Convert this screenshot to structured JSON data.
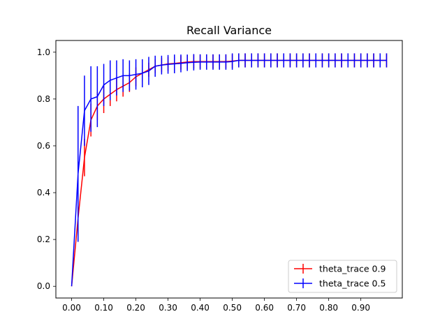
{
  "chart_data": {
    "type": "line",
    "title": "Recall Variance",
    "xlabel": "",
    "ylabel": "",
    "xlim": [
      -0.049,
      1.029
    ],
    "ylim": [
      -0.05,
      1.05
    ],
    "xticks": [
      0.0,
      0.1,
      0.2,
      0.3,
      0.4,
      0.5,
      0.6,
      0.7,
      0.8,
      0.9
    ],
    "xtick_labels": [
      "0.00",
      "0.10",
      "0.20",
      "0.30",
      "0.40",
      "0.50",
      "0.60",
      "0.70",
      "0.80",
      "0.90"
    ],
    "yticks": [
      0.0,
      0.2,
      0.4,
      0.6,
      0.8,
      1.0
    ],
    "ytick_labels": [
      "0.0",
      "0.2",
      "0.4",
      "0.6",
      "0.8",
      "1.0"
    ],
    "grid": false,
    "legend_position": "bottom-right",
    "x": [
      0.0,
      0.02,
      0.04,
      0.06,
      0.08,
      0.1,
      0.12,
      0.14,
      0.16,
      0.18,
      0.2,
      0.22,
      0.24,
      0.26,
      0.28,
      0.3,
      0.32,
      0.34,
      0.36,
      0.38,
      0.4,
      0.42,
      0.44,
      0.46,
      0.48,
      0.5,
      0.52,
      0.54,
      0.56,
      0.58,
      0.6,
      0.62,
      0.64,
      0.66,
      0.68,
      0.7,
      0.72,
      0.74,
      0.76,
      0.78,
      0.8,
      0.82,
      0.84,
      0.86,
      0.88,
      0.9,
      0.92,
      0.94,
      0.96,
      0.98
    ],
    "series": [
      {
        "name": "theta_trace 0.9",
        "color": "#ff0000",
        "values": [
          0.0,
          0.29,
          0.55,
          0.71,
          0.77,
          0.8,
          0.82,
          0.84,
          0.855,
          0.87,
          0.895,
          0.91,
          0.925,
          0.94,
          0.945,
          0.95,
          0.952,
          0.955,
          0.958,
          0.96,
          0.96,
          0.96,
          0.96,
          0.96,
          0.96,
          0.962,
          0.965,
          0.965,
          0.965,
          0.965,
          0.965,
          0.965,
          0.965,
          0.965,
          0.965,
          0.965,
          0.965,
          0.965,
          0.965,
          0.965,
          0.965,
          0.965,
          0.965,
          0.965,
          0.965,
          0.965,
          0.965,
          0.965,
          0.965,
          0.965
        ],
        "errors": [
          0.0,
          0.05,
          0.08,
          0.07,
          0.06,
          0.06,
          0.05,
          0.05,
          0.045,
          0.04,
          0.04,
          0.035,
          0.03,
          0.03,
          0.03,
          0.03,
          0.03,
          0.03,
          0.03,
          0.03,
          0.03,
          0.03,
          0.03,
          0.03,
          0.03,
          0.03,
          0.03,
          0.03,
          0.03,
          0.03,
          0.03,
          0.03,
          0.03,
          0.03,
          0.03,
          0.03,
          0.03,
          0.03,
          0.03,
          0.03,
          0.03,
          0.03,
          0.03,
          0.03,
          0.03,
          0.03,
          0.03,
          0.03,
          0.03,
          0.03
        ]
      },
      {
        "name": "theta_trace 0.5",
        "color": "#0000ff",
        "values": [
          0.0,
          0.48,
          0.75,
          0.8,
          0.81,
          0.86,
          0.88,
          0.89,
          0.9,
          0.9,
          0.905,
          0.91,
          0.92,
          0.94,
          0.945,
          0.948,
          0.95,
          0.952,
          0.955,
          0.957,
          0.958,
          0.958,
          0.958,
          0.958,
          0.958,
          0.96,
          0.965,
          0.965,
          0.965,
          0.965,
          0.965,
          0.965,
          0.965,
          0.965,
          0.965,
          0.965,
          0.965,
          0.965,
          0.965,
          0.965,
          0.965,
          0.965,
          0.965,
          0.965,
          0.965,
          0.965,
          0.965,
          0.965,
          0.965,
          0.965
        ],
        "errors": [
          0.0,
          0.29,
          0.15,
          0.14,
          0.13,
          0.09,
          0.085,
          0.075,
          0.07,
          0.065,
          0.065,
          0.06,
          0.06,
          0.045,
          0.04,
          0.04,
          0.04,
          0.038,
          0.035,
          0.035,
          0.033,
          0.033,
          0.033,
          0.033,
          0.033,
          0.035,
          0.03,
          0.03,
          0.03,
          0.03,
          0.03,
          0.03,
          0.03,
          0.03,
          0.03,
          0.03,
          0.03,
          0.03,
          0.03,
          0.03,
          0.03,
          0.03,
          0.03,
          0.03,
          0.03,
          0.03,
          0.03,
          0.03,
          0.03,
          0.03
        ]
      }
    ]
  }
}
